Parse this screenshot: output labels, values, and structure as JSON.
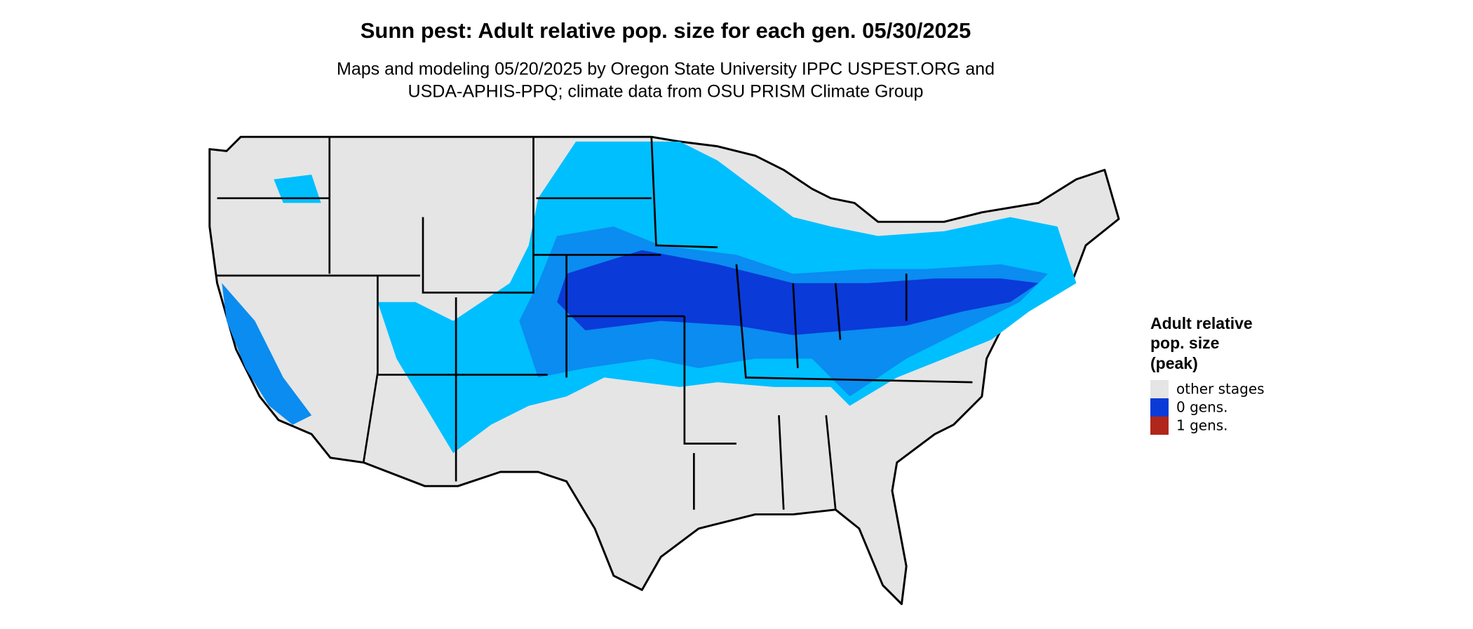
{
  "title": "Sunn pest: Adult relative pop. size for each gen. 05/30/2025",
  "subtitle": [
    "Maps and modeling 05/20/2025 by Oregon State University IPPC USPEST.ORG and",
    "USDA-APHIS-PPQ; climate data from OSU PRISM Climate Group"
  ],
  "legend": {
    "title": [
      "Adult relative",
      "pop. size",
      "(peak)"
    ],
    "items": [
      {
        "label": "other stages",
        "color": "#e5e5e5"
      },
      {
        "label": "0 gens.",
        "color": "#0a3ad8"
      },
      {
        "label": "1 gens.",
        "color": "#b0261a"
      }
    ]
  }
}
